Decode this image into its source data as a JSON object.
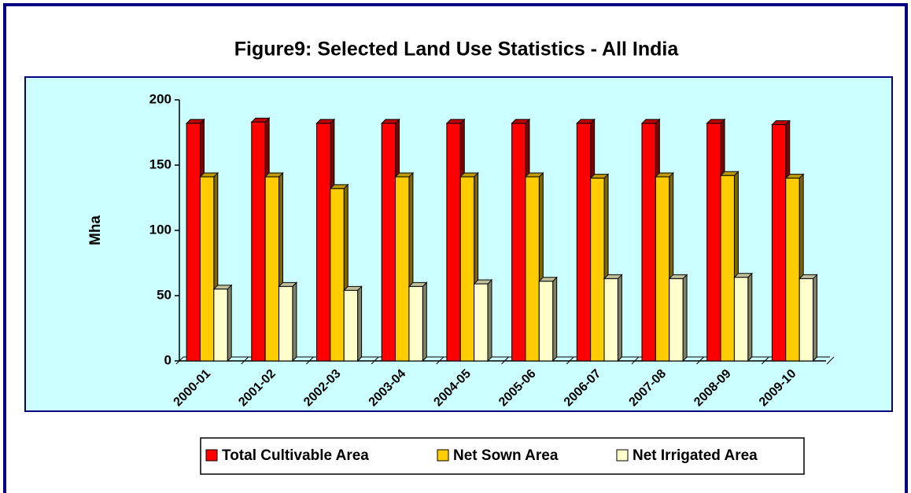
{
  "chart_data": {
    "type": "bar3d",
    "title": "Figure9: Selected Land Use Statistics - All India",
    "y_label": "Mha",
    "categories": [
      "2000-01",
      "2001-02",
      "2002-03",
      "2003-04",
      "2004-05",
      "2005-06",
      "2006-07",
      "2007-08",
      "2008-09",
      "2009-10"
    ],
    "series": [
      {
        "name": "Total Cultivable Area",
        "color": "#ff0000",
        "values": [
          182,
          183,
          182,
          182,
          182,
          182,
          182,
          182,
          182,
          181
        ]
      },
      {
        "name": "Net Sown Area",
        "color": "#ffcc00",
        "values": [
          141,
          141,
          132,
          141,
          141,
          141,
          140,
          141,
          142,
          140
        ]
      },
      {
        "name": "Net Irrigated Area",
        "color": "#ffffcc",
        "values": [
          55,
          57,
          54,
          57,
          59,
          61,
          63,
          63,
          64,
          63
        ]
      }
    ],
    "ylim": [
      0,
      200
    ],
    "yticks": [
      0,
      50,
      100,
      150,
      200
    ],
    "legend": "bottom"
  }
}
